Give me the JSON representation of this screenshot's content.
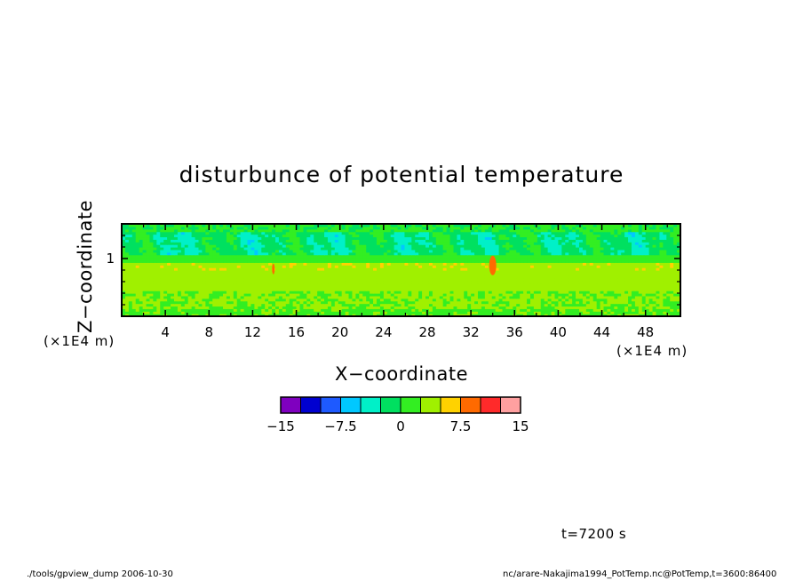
{
  "chart_data": {
    "type": "heatmap",
    "title": "disturbunce of potential temperature",
    "xlabel": "X−coordinate",
    "ylabel": "Z−coordinate",
    "x_unit": "(×1E4 m)",
    "z_unit": "(×1E4 m)",
    "xlim": [
      0,
      51.2
    ],
    "zlim": [
      0,
      1.6
    ],
    "x_ticks": [
      "4",
      "8",
      "12",
      "16",
      "20",
      "24",
      "28",
      "32",
      "36",
      "40",
      "44",
      "48"
    ],
    "z_ticks": [
      "1"
    ],
    "colorbar": {
      "levels": [
        -15,
        -12.5,
        -10,
        -7.5,
        -5,
        -2.5,
        0,
        2.5,
        5,
        7.5,
        10,
        12.5,
        15
      ],
      "colors": [
        "#7f00bf",
        "#0000d0",
        "#1e5aff",
        "#00c8ff",
        "#00f0c8",
        "#00e060",
        "#33ee22",
        "#a0f000",
        "#ffd200",
        "#ff6a00",
        "#ff2a2a",
        "#ffa0a0"
      ],
      "tick_labels": [
        "−15",
        "−7.5",
        "0",
        "7.5",
        "15"
      ]
    }
  },
  "annotation": {
    "time": "t=7200 s"
  },
  "footer": {
    "left": "./tools/gpview_dump   2006-10-30",
    "right": "nc/arare-Nakajima1994_PotTemp.nc@PotTemp,t=3600:86400"
  }
}
